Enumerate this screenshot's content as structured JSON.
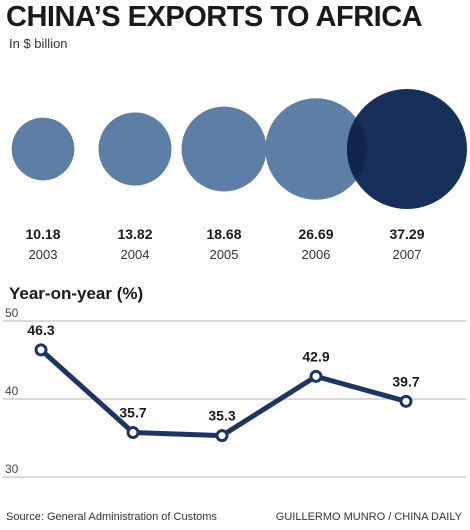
{
  "header": {
    "title": "CHINA’S EXPORTS TO AFRICA",
    "subtitle": "In $ billion"
  },
  "colors": {
    "bubble_light": "#5d7ea5",
    "bubble_dark": "#16305a",
    "overlap": "#11264a",
    "line": "#1c3566",
    "grid": "#b5b5b5"
  },
  "chart_data": [
    {
      "type": "bubble",
      "title": "CHINA’S EXPORTS TO AFRICA",
      "unit": "In $ billion",
      "categories": [
        "2003",
        "2004",
        "2005",
        "2006",
        "2007"
      ],
      "values": [
        10.18,
        13.82,
        18.68,
        26.69,
        37.29
      ],
      "value_labels": [
        "10.18",
        "13.82",
        "18.68",
        "26.69",
        "37.29"
      ],
      "highlight_index": 4
    },
    {
      "type": "line",
      "title": "Year-on-year (%)",
      "categories": [
        "2003",
        "2004",
        "2005",
        "2006",
        "2007"
      ],
      "values": [
        46.3,
        35.7,
        35.3,
        42.9,
        39.7
      ],
      "value_labels": [
        "46.3",
        "35.7",
        "35.3",
        "42.9",
        "39.7"
      ],
      "ylim": [
        30,
        50
      ],
      "yticks": [
        "30",
        "40",
        "50"
      ],
      "grid": true
    }
  ],
  "footer": {
    "source": "Source: General Administration of Customs",
    "credit": "GUILLERMO MUNRO / CHINA DAILY"
  }
}
